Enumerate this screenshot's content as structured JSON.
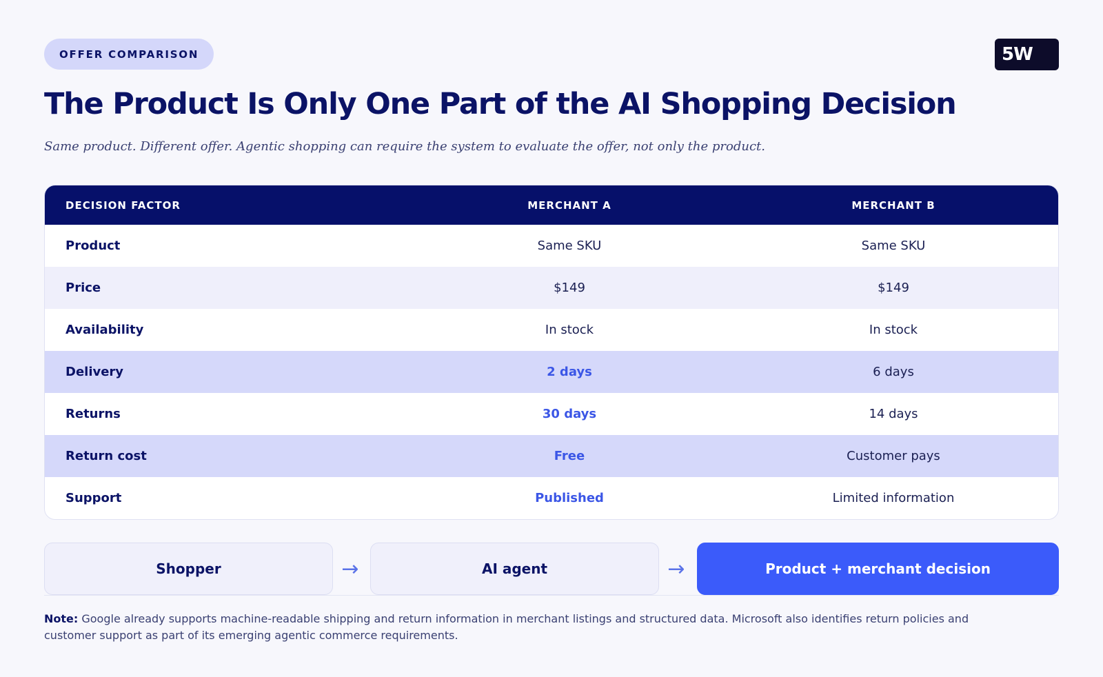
{
  "header": {
    "badge": "OFFER COMPARISON",
    "logo": "5W",
    "title": "The Product Is Only One Part of the AI Shopping Decision",
    "subtitle": "Same product. Different offer. Agentic shopping can require the system to evaluate the offer, not only the product."
  },
  "table": {
    "columns": [
      "DECISION FACTOR",
      "MERCHANT A",
      "MERCHANT B"
    ],
    "rows": [
      {
        "factor": "Product",
        "a": "Same SKU",
        "b": "Same SKU"
      },
      {
        "factor": "Price",
        "a": "$149",
        "b": "$149"
      },
      {
        "factor": "Availability",
        "a": "In stock",
        "b": "In stock"
      },
      {
        "factor": "Delivery",
        "a": "2 days",
        "b": "6 days"
      },
      {
        "factor": "Returns",
        "a": "30 days",
        "b": "14 days"
      },
      {
        "factor": "Return cost",
        "a": "Free",
        "b": "Customer pays"
      },
      {
        "factor": "Support",
        "a": "Published",
        "b": "Limited information"
      }
    ]
  },
  "flow": {
    "steps": [
      "Shopper",
      "AI agent",
      "Product + merchant decision"
    ],
    "arrow": "→"
  },
  "note": {
    "label": "Note:",
    "text": " Google already supports machine-readable shipping and return information in merchant listings and structured data. Microsoft also identifies return policies and customer support as part of its emerging agentic commerce requirements."
  },
  "colors": {
    "navy": "#06106a",
    "accent": "#3b5bfa",
    "highlight_text": "#3b56e6",
    "row_highlight": "#d5d8fa"
  }
}
